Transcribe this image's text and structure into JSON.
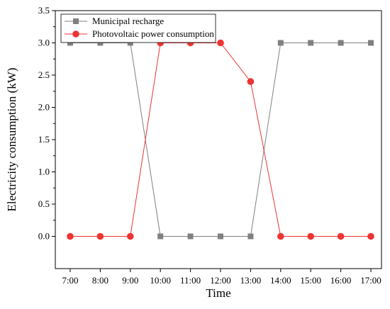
{
  "chart_data": {
    "type": "line",
    "xlabel": "Time",
    "ylabel": "Electricity consumption (kW)",
    "categories": [
      "7:00",
      "8:00",
      "9:00",
      "10:00",
      "11:00",
      "12:00",
      "13:00",
      "14:00",
      "15:00",
      "16:00",
      "17:00"
    ],
    "ylim": [
      -0.5,
      3.5
    ],
    "yticks": [
      "0.0",
      "0.5",
      "1.0",
      "1.5",
      "2.0",
      "2.5",
      "3.0",
      "3.5"
    ],
    "legend_position": "top-left",
    "grid": false,
    "series": [
      {
        "name": "Municipal recharge",
        "color": "#808080",
        "marker": "square",
        "values": [
          3.0,
          3.0,
          3.0,
          0.0,
          0.0,
          0.0,
          0.0,
          3.0,
          3.0,
          3.0,
          3.0
        ]
      },
      {
        "name": "Photovoltaic power consumption",
        "color": "#ee3333",
        "marker": "circle",
        "values": [
          0.0,
          0.0,
          0.0,
          3.0,
          3.0,
          3.0,
          2.4,
          0.0,
          0.0,
          0.0,
          0.0
        ]
      }
    ]
  }
}
